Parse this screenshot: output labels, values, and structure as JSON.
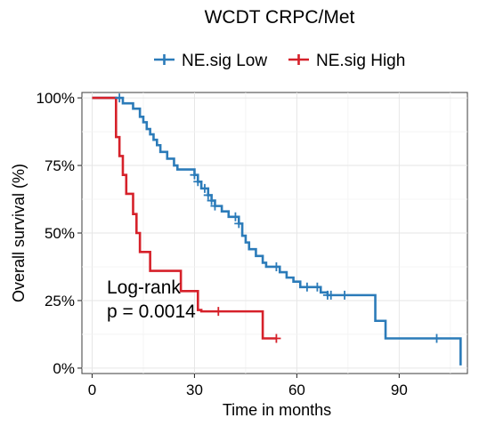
{
  "chart_data": {
    "type": "line",
    "title": "WCDT CRPC/Met",
    "xlabel": "Time in months",
    "ylabel": "Overall survival (%)",
    "xlim": [
      -3,
      110
    ],
    "ylim": [
      -0.02,
      1.02
    ],
    "x_ticks": [
      0,
      30,
      60,
      90
    ],
    "x_tick_labels": [
      "0",
      "30",
      "60",
      "90"
    ],
    "y_ticks": [
      0,
      0.25,
      0.5,
      0.75,
      1.0
    ],
    "y_tick_labels": [
      "0%",
      "25%",
      "50%",
      "75%",
      "100%"
    ],
    "grid": true,
    "legend_position": "top",
    "annotation": [
      "Log-rank",
      "p = 0.0014"
    ],
    "series": [
      {
        "name": "NE.sig Low",
        "color": "#2B7BB9",
        "steps": [
          [
            0,
            1.0
          ],
          [
            9,
            0.98
          ],
          [
            12,
            0.96
          ],
          [
            14,
            0.93
          ],
          [
            15,
            0.91
          ],
          [
            16,
            0.885
          ],
          [
            17,
            0.865
          ],
          [
            18,
            0.845
          ],
          [
            19,
            0.825
          ],
          [
            20,
            0.8
          ],
          [
            22,
            0.775
          ],
          [
            24,
            0.75
          ],
          [
            25,
            0.735
          ],
          [
            30,
            0.715
          ],
          [
            31,
            0.69
          ],
          [
            32,
            0.665
          ],
          [
            34,
            0.64
          ],
          [
            35,
            0.62
          ],
          [
            36,
            0.6
          ],
          [
            38,
            0.58
          ],
          [
            40,
            0.56
          ],
          [
            43,
            0.535
          ],
          [
            44,
            0.49
          ],
          [
            45,
            0.465
          ],
          [
            46,
            0.44
          ],
          [
            48,
            0.415
          ],
          [
            50,
            0.39
          ],
          [
            51,
            0.375
          ],
          [
            55,
            0.355
          ],
          [
            57,
            0.335
          ],
          [
            59,
            0.32
          ],
          [
            61,
            0.3
          ],
          [
            67,
            0.28
          ],
          [
            69,
            0.27
          ],
          [
            83,
            0.175
          ],
          [
            86,
            0.11
          ],
          [
            108,
            0.01
          ]
        ],
        "end": 108,
        "censor_times": [
          8,
          30,
          31,
          33,
          34,
          35,
          36,
          42,
          43,
          54,
          63,
          66,
          69,
          70,
          74,
          101
        ]
      },
      {
        "name": "NE.sig High",
        "color": "#D6212A",
        "steps": [
          [
            0,
            1.0
          ],
          [
            7,
            0.855
          ],
          [
            8,
            0.785
          ],
          [
            9,
            0.715
          ],
          [
            10,
            0.645
          ],
          [
            12,
            0.57
          ],
          [
            13,
            0.5
          ],
          [
            14,
            0.43
          ],
          [
            17,
            0.36
          ],
          [
            26,
            0.285
          ],
          [
            31,
            0.215
          ],
          [
            32,
            0.21
          ],
          [
            50,
            0.11
          ]
        ],
        "end": 54,
        "censor_times": [
          37,
          54
        ]
      }
    ]
  }
}
